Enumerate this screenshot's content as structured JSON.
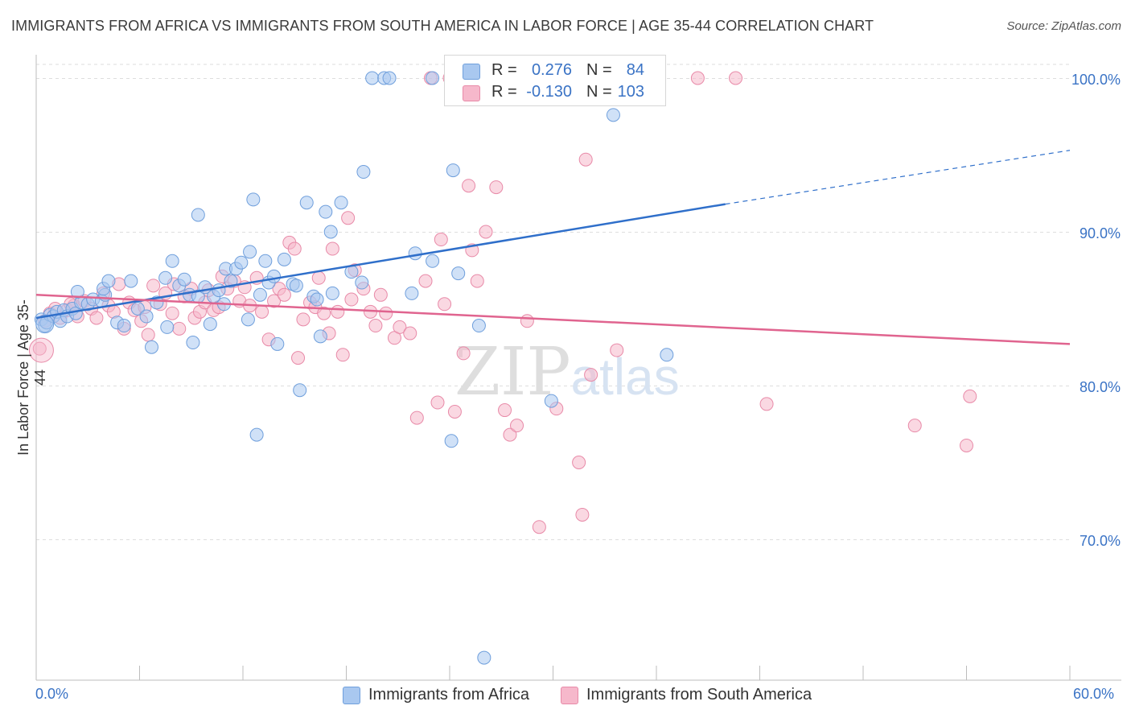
{
  "title": "IMMIGRANTS FROM AFRICA VS IMMIGRANTS FROM SOUTH AMERICA IN LABOR FORCE | AGE 35-44 CORRELATION CHART",
  "source": "Source: ZipAtlas.com",
  "watermark": "ZIPatlas",
  "legend": {
    "africa": {
      "r_label": "R =",
      "r_value": "0.276",
      "n_label": "N =",
      "n_value": "84"
    },
    "south_america": {
      "r_label": "R =",
      "r_value": "-0.130",
      "n_label": "N =",
      "n_value": "103"
    }
  },
  "bottom_legend": {
    "africa": "Immigrants from Africa",
    "south_america": "Immigrants from South America"
  },
  "colors": {
    "africa_fill": "#a9c8f0",
    "africa_stroke": "#6f9fdc",
    "africa_line": "#2f6fca",
    "sa_fill": "#f6b8cb",
    "sa_stroke": "#e88aa8",
    "sa_line": "#e0648f",
    "tick_text": "#3a73c5",
    "grid": "#dedede"
  },
  "chart_data": {
    "type": "scatter",
    "title": "IMMIGRANTS FROM AFRICA VS IMMIGRANTS FROM SOUTH AMERICA IN LABOR FORCE | AGE 35-44 CORRELATION CHART",
    "xlabel": "",
    "ylabel": "In Labor Force | Age 35-44",
    "xlim": [
      0,
      60
    ],
    "ylim": [
      60,
      102
    ],
    "x_tick_labels": [
      "0.0%",
      "60.0%"
    ],
    "y_ticks": [
      70,
      80,
      90,
      100
    ],
    "y_tick_labels": [
      "70.0%",
      "80.0%",
      "90.0%",
      "100.0%"
    ],
    "grid": true,
    "series": [
      {
        "name": "Immigrants from Africa",
        "r": 0.276,
        "n": 84,
        "trend": {
          "x0": 0,
          "y0": 84.4,
          "x1": 40,
          "y1": 91.8,
          "dashed_to_x": 60,
          "dashed_to_y": 95.3
        },
        "points": [
          [
            0.3,
            84.3
          ],
          [
            0.5,
            83.9
          ],
          [
            0.6,
            84.1
          ],
          [
            0.8,
            84.6
          ],
          [
            1.0,
            84.5
          ],
          [
            1.2,
            84.8
          ],
          [
            1.4,
            84.2
          ],
          [
            1.6,
            84.9
          ],
          [
            1.8,
            84.5
          ],
          [
            2.1,
            85.0
          ],
          [
            2.3,
            84.7
          ],
          [
            2.6,
            85.4
          ],
          [
            2.4,
            86.1
          ],
          [
            3.0,
            85.3
          ],
          [
            3.3,
            85.6
          ],
          [
            3.8,
            85.5
          ],
          [
            4.0,
            85.9
          ],
          [
            3.9,
            86.3
          ],
          [
            4.2,
            86.8
          ],
          [
            4.7,
            84.1
          ],
          [
            5.1,
            83.9
          ],
          [
            5.5,
            86.8
          ],
          [
            5.9,
            85.0
          ],
          [
            6.4,
            84.5
          ],
          [
            6.7,
            82.5
          ],
          [
            7.0,
            85.4
          ],
          [
            7.5,
            87.0
          ],
          [
            7.6,
            83.8
          ],
          [
            7.9,
            88.1
          ],
          [
            8.3,
            86.5
          ],
          [
            8.6,
            86.9
          ],
          [
            8.9,
            85.9
          ],
          [
            9.1,
            82.8
          ],
          [
            9.4,
            85.8
          ],
          [
            9.4,
            91.1
          ],
          [
            9.8,
            86.4
          ],
          [
            10.1,
            84.0
          ],
          [
            10.3,
            85.8
          ],
          [
            10.6,
            86.2
          ],
          [
            10.9,
            85.3
          ],
          [
            11.0,
            87.6
          ],
          [
            11.3,
            86.8
          ],
          [
            11.6,
            87.6
          ],
          [
            11.9,
            88.0
          ],
          [
            12.3,
            84.3
          ],
          [
            12.4,
            88.7
          ],
          [
            12.6,
            92.1
          ],
          [
            12.8,
            76.8
          ],
          [
            13.0,
            85.9
          ],
          [
            13.3,
            88.1
          ],
          [
            13.5,
            86.7
          ],
          [
            13.8,
            87.1
          ],
          [
            14.0,
            82.7
          ],
          [
            14.4,
            88.2
          ],
          [
            14.9,
            86.6
          ],
          [
            15.1,
            86.5
          ],
          [
            15.3,
            79.7
          ],
          [
            15.7,
            91.9
          ],
          [
            16.1,
            85.8
          ],
          [
            16.3,
            85.6
          ],
          [
            16.5,
            83.2
          ],
          [
            16.8,
            91.3
          ],
          [
            17.1,
            90.0
          ],
          [
            17.2,
            86.0
          ],
          [
            17.7,
            91.9
          ],
          [
            18.3,
            87.4
          ],
          [
            18.9,
            86.7
          ],
          [
            19.0,
            93.9
          ],
          [
            19.5,
            100.0
          ],
          [
            20.2,
            100.0
          ],
          [
            20.5,
            100.0
          ],
          [
            21.8,
            86.0
          ],
          [
            22.0,
            88.6
          ],
          [
            23.0,
            88.1
          ],
          [
            23.0,
            100.0
          ],
          [
            24.1,
            76.4
          ],
          [
            24.2,
            94.0
          ],
          [
            24.5,
            87.3
          ],
          [
            25.7,
            83.9
          ],
          [
            26.0,
            62.3
          ],
          [
            29.9,
            79.0
          ],
          [
            31.2,
            100.0
          ],
          [
            33.5,
            97.6
          ],
          [
            36.6,
            82.0
          ]
        ]
      },
      {
        "name": "Immigrants from South America",
        "r": -0.13,
        "n": 103,
        "trend": {
          "x0": 0,
          "y0": 85.9,
          "x1": 60,
          "y1": 82.7
        },
        "points": [
          [
            0.2,
            82.4
          ],
          [
            0.5,
            84.2
          ],
          [
            0.8,
            84.7
          ],
          [
            1.1,
            85.0
          ],
          [
            1.4,
            84.4
          ],
          [
            1.8,
            84.9
          ],
          [
            2.2,
            85.2
          ],
          [
            2.4,
            84.5
          ],
          [
            2.8,
            85.5
          ],
          [
            3.2,
            85.0
          ],
          [
            3.5,
            84.4
          ],
          [
            3.9,
            86.0
          ],
          [
            4.2,
            85.2
          ],
          [
            4.5,
            84.8
          ],
          [
            4.8,
            86.6
          ],
          [
            5.1,
            83.7
          ],
          [
            5.4,
            85.4
          ],
          [
            5.7,
            84.9
          ],
          [
            6.1,
            84.2
          ],
          [
            6.3,
            85.1
          ],
          [
            6.5,
            83.3
          ],
          [
            6.8,
            86.5
          ],
          [
            7.2,
            85.3
          ],
          [
            7.5,
            86.0
          ],
          [
            7.9,
            84.7
          ],
          [
            8.0,
            86.6
          ],
          [
            8.3,
            83.7
          ],
          [
            8.6,
            85.8
          ],
          [
            9.0,
            86.3
          ],
          [
            9.2,
            84.4
          ],
          [
            9.5,
            84.8
          ],
          [
            9.8,
            85.4
          ],
          [
            10.0,
            86.2
          ],
          [
            10.3,
            84.9
          ],
          [
            10.6,
            85.1
          ],
          [
            10.8,
            87.1
          ],
          [
            11.1,
            86.3
          ],
          [
            11.5,
            86.8
          ],
          [
            11.8,
            85.5
          ],
          [
            12.1,
            86.4
          ],
          [
            12.4,
            85.2
          ],
          [
            12.8,
            87.0
          ],
          [
            13.1,
            84.8
          ],
          [
            13.5,
            83.0
          ],
          [
            13.8,
            85.5
          ],
          [
            14.1,
            86.3
          ],
          [
            14.4,
            85.9
          ],
          [
            14.7,
            89.3
          ],
          [
            15.0,
            88.9
          ],
          [
            15.2,
            81.8
          ],
          [
            15.5,
            84.3
          ],
          [
            15.9,
            85.4
          ],
          [
            16.2,
            85.1
          ],
          [
            16.4,
            87.0
          ],
          [
            16.7,
            84.7
          ],
          [
            17.0,
            83.4
          ],
          [
            17.2,
            88.9
          ],
          [
            17.5,
            84.8
          ],
          [
            17.8,
            82.0
          ],
          [
            18.1,
            90.9
          ],
          [
            18.3,
            85.6
          ],
          [
            18.5,
            87.5
          ],
          [
            19.0,
            86.3
          ],
          [
            19.4,
            84.8
          ],
          [
            19.7,
            83.9
          ],
          [
            20.0,
            85.9
          ],
          [
            20.3,
            84.7
          ],
          [
            20.8,
            83.1
          ],
          [
            21.1,
            83.8
          ],
          [
            21.7,
            83.4
          ],
          [
            22.1,
            77.9
          ],
          [
            22.6,
            86.8
          ],
          [
            22.9,
            100.0
          ],
          [
            23.3,
            78.9
          ],
          [
            23.5,
            89.5
          ],
          [
            23.7,
            85.3
          ],
          [
            24.0,
            100.0
          ],
          [
            24.3,
            78.3
          ],
          [
            24.8,
            82.1
          ],
          [
            25.1,
            93.0
          ],
          [
            25.3,
            88.8
          ],
          [
            25.6,
            86.8
          ],
          [
            26.1,
            90.0
          ],
          [
            26.7,
            92.9
          ],
          [
            27.2,
            78.4
          ],
          [
            27.5,
            76.8
          ],
          [
            27.9,
            77.4
          ],
          [
            28.5,
            84.2
          ],
          [
            29.2,
            70.8
          ],
          [
            30.2,
            78.5
          ],
          [
            30.5,
            100.0
          ],
          [
            31.5,
            75.0
          ],
          [
            31.7,
            71.6
          ],
          [
            31.9,
            94.7
          ],
          [
            32.2,
            80.7
          ],
          [
            33.7,
            82.3
          ],
          [
            38.4,
            100.0
          ],
          [
            40.6,
            100.0
          ],
          [
            42.4,
            78.8
          ],
          [
            51.0,
            77.4
          ],
          [
            54.0,
            76.1
          ],
          [
            54.2,
            79.3
          ],
          [
            2.0,
            85.3
          ]
        ]
      }
    ]
  }
}
